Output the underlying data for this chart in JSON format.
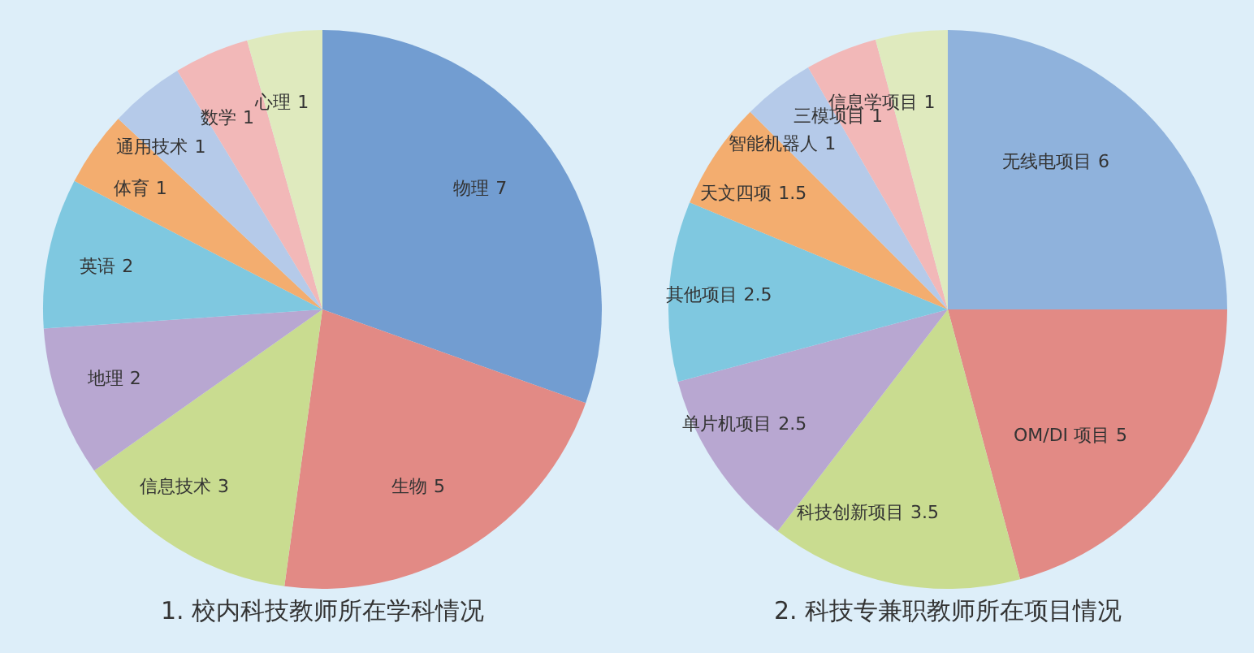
{
  "chart_data": [
    {
      "type": "pie",
      "title": "1. 校内科技教师所在学科情况",
      "categories": [
        "物理",
        "生物",
        "信息技术",
        "地理",
        "英语",
        "体育",
        "通用技术",
        "数学",
        "心理"
      ],
      "values": [
        7,
        5,
        3,
        2,
        2,
        1,
        1,
        1,
        1
      ],
      "colors": [
        "#729dd1",
        "#e28a85",
        "#c9dc90",
        "#b8a7d1",
        "#7fc8e0",
        "#f3ad6f",
        "#b5cae9",
        "#f2b8b8",
        "#dfeabe"
      ],
      "data_labels": true,
      "legend": false
    },
    {
      "type": "pie",
      "title": "2. 科技专兼职教师所在项目情况",
      "categories": [
        "无线电项目",
        "OM/DI 项目",
        "科技创新项目",
        "单片机项目",
        "其他项目",
        "天文四项",
        "智能机器人",
        "三模项目",
        "信息学项目"
      ],
      "values": [
        6,
        5,
        3.5,
        2.5,
        2.5,
        1.5,
        1,
        1,
        1
      ],
      "colors": [
        "#8fb2dc",
        "#e28a85",
        "#c9dc90",
        "#b8a7d1",
        "#7fc8e0",
        "#f3ad6f",
        "#b5cae9",
        "#f2b8b8",
        "#dfeabe"
      ],
      "data_labels": true,
      "legend": false
    }
  ]
}
